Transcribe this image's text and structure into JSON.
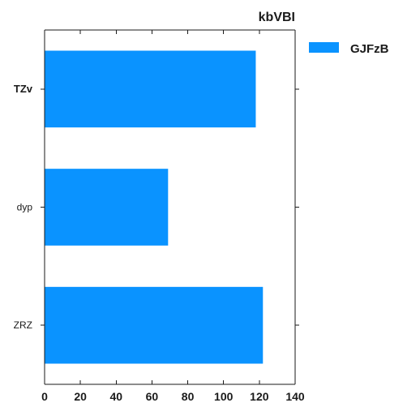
{
  "chart_data": {
    "type": "bar",
    "orientation": "horizontal",
    "title": "kbVBI",
    "categories": [
      "TZv",
      "dyp",
      "ZRZ"
    ],
    "series": [
      {
        "name": "GJFzB",
        "values": [
          118,
          69,
          122
        ],
        "color": "#0a93ff"
      }
    ],
    "xlim": [
      0,
      140
    ],
    "xticks": [
      0,
      20,
      40,
      60,
      80,
      100,
      120,
      140
    ],
    "xlabel": "",
    "ylabel": "",
    "grid": false,
    "legend_position": "outside-top-right"
  }
}
